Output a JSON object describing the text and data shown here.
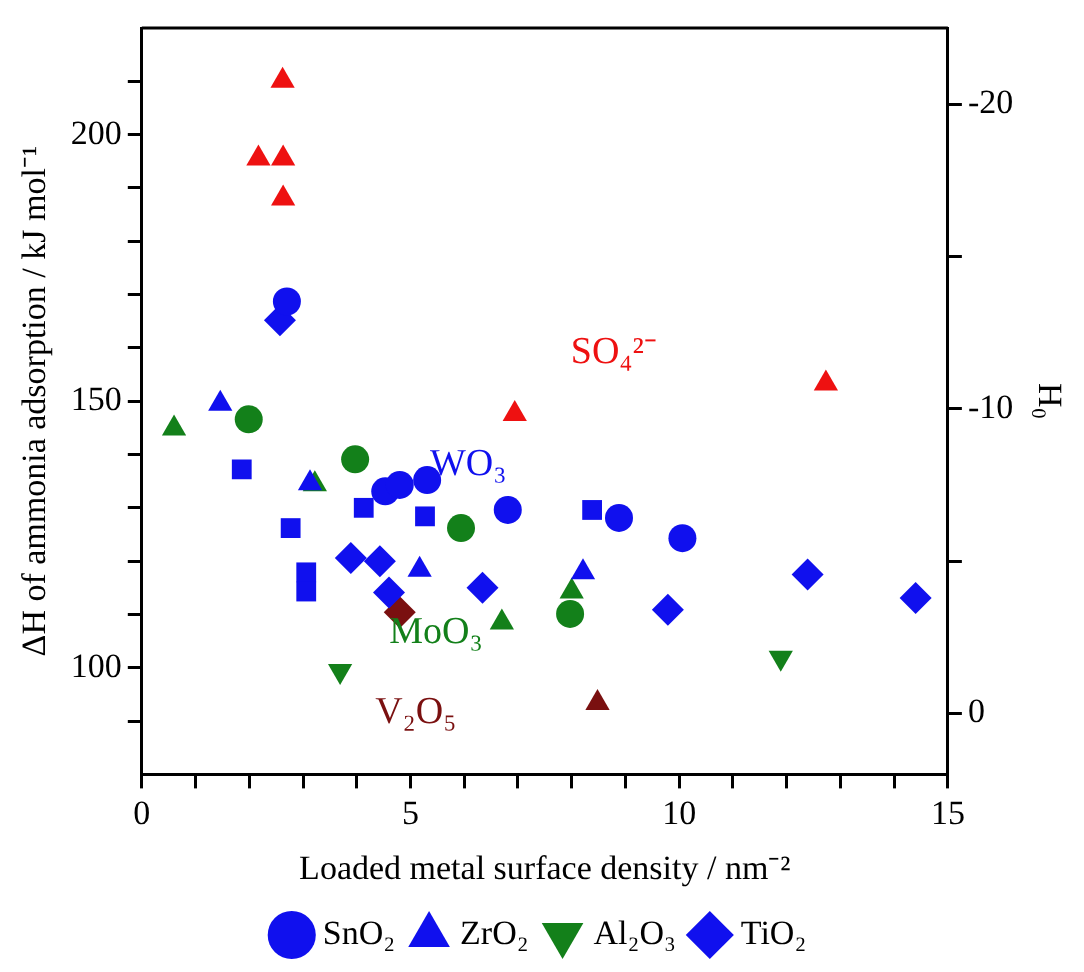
{
  "chart_data": {
    "type": "scatter",
    "xlabel": "Loaded metal surface density / nm⁻²",
    "ylabel": "ΔH of ammonia adsorption / kJ mol⁻¹",
    "y2label": "H₀",
    "xlim": [
      0,
      15
    ],
    "xticks": [
      0,
      {
        "value": 1,
        "label": null
      },
      {
        "value": 2,
        "label": null
      },
      {
        "value": 3,
        "label": null
      },
      {
        "value": 4,
        "label": null
      },
      5,
      {
        "value": 6,
        "label": null
      },
      {
        "value": 7,
        "label": null
      },
      {
        "value": 8,
        "label": null
      },
      {
        "value": 9,
        "label": null
      },
      10,
      {
        "value": 11,
        "label": null
      },
      {
        "value": 12,
        "label": null
      },
      {
        "value": 13,
        "label": null
      },
      {
        "value": 14,
        "label": null
      },
      15
    ],
    "ylim": [
      80,
      220
    ],
    "yticks": [
      {
        "value": 90,
        "label": null
      },
      100,
      {
        "value": 110,
        "label": null
      },
      {
        "value": 120,
        "label": null
      },
      {
        "value": 130,
        "label": null
      },
      {
        "value": 140,
        "label": null
      },
      150,
      {
        "value": 160,
        "label": null
      },
      {
        "value": 170,
        "label": null
      },
      {
        "value": 180,
        "label": null
      },
      {
        "value": 190,
        "label": null
      },
      200,
      {
        "value": 210,
        "label": null
      }
    ],
    "y2lim": [
      2,
      -22.5
    ],
    "y2ticks": [
      0,
      {
        "value": -5,
        "label": null
      },
      -10,
      {
        "value": -15,
        "label": null
      },
      -20
    ],
    "grid": false,
    "legend": "bottom",
    "series": [
      {
        "name": "SnO₂",
        "color": "#1010ee",
        "marker": "circle",
        "x": [
          2.7,
          4.53,
          4.8,
          5.31,
          6.81,
          8.88,
          10.06
        ],
        "values": [
          168.7,
          133.1,
          134.3,
          135.2,
          129.6,
          128.1,
          124.3
        ]
      },
      {
        "name": "ZrO₂",
        "color": "#1010ee",
        "marker": "triangle",
        "x": [
          1.46,
          3.13,
          5.17,
          8.21
        ],
        "values": [
          149.5,
          134.6,
          118.4,
          117.9
        ]
      },
      {
        "name": "Al₂O₃",
        "color": "#13801a",
        "marker": "triangle-down",
        "x": [
          3.69,
          11.89
        ],
        "values": [
          99.4,
          101.9
        ]
      },
      {
        "name": "TiO₂",
        "color": "#1010ee",
        "marker": "diamond",
        "x": [
          2.57,
          3.89,
          4.43,
          4.6,
          6.34,
          9.79,
          12.39,
          14.4
        ],
        "values": [
          165.2,
          120.6,
          120.0,
          114.1,
          115.0,
          110.9,
          117.5,
          113.1
        ]
      },
      {
        "color": "#1010ee",
        "marker": "square",
        "x": [
          1.86,
          2.77,
          3.06,
          3.06,
          4.13,
          5.27,
          8.38
        ],
        "values": [
          137.2,
          126.2,
          117.9,
          114.3,
          130.0,
          128.4,
          129.6
        ]
      },
      {
        "color": "#13801a",
        "marker": "circle",
        "x": [
          1.99,
          3.97,
          5.94,
          7.97
        ],
        "values": [
          146.6,
          139.1,
          126.2,
          110.1
        ]
      },
      {
        "color": "#13801a",
        "marker": "triangle",
        "x": [
          0.6,
          3.22,
          6.7,
          8.0
        ],
        "values": [
          144.9,
          134.4,
          108.5,
          114.3
        ]
      },
      {
        "color": "#ee1111",
        "marker": "triangle",
        "x": [
          2.62,
          2.17,
          2.63,
          2.63,
          6.94,
          12.73
        ],
        "values": [
          210.1,
          195.5,
          195.5,
          188.0,
          147.6,
          153.3
        ]
      },
      {
        "color": "#7a1010",
        "marker": "diamond",
        "x": [
          4.8
        ],
        "values": [
          110.4
        ]
      },
      {
        "color": "#7a1010",
        "marker": "triangle",
        "x": [
          8.48
        ],
        "values": [
          93.4
        ]
      }
    ],
    "annotations": [
      "WO₃",
      "MoO₃",
      "SO₄²⁻",
      "V₂O₅"
    ]
  }
}
